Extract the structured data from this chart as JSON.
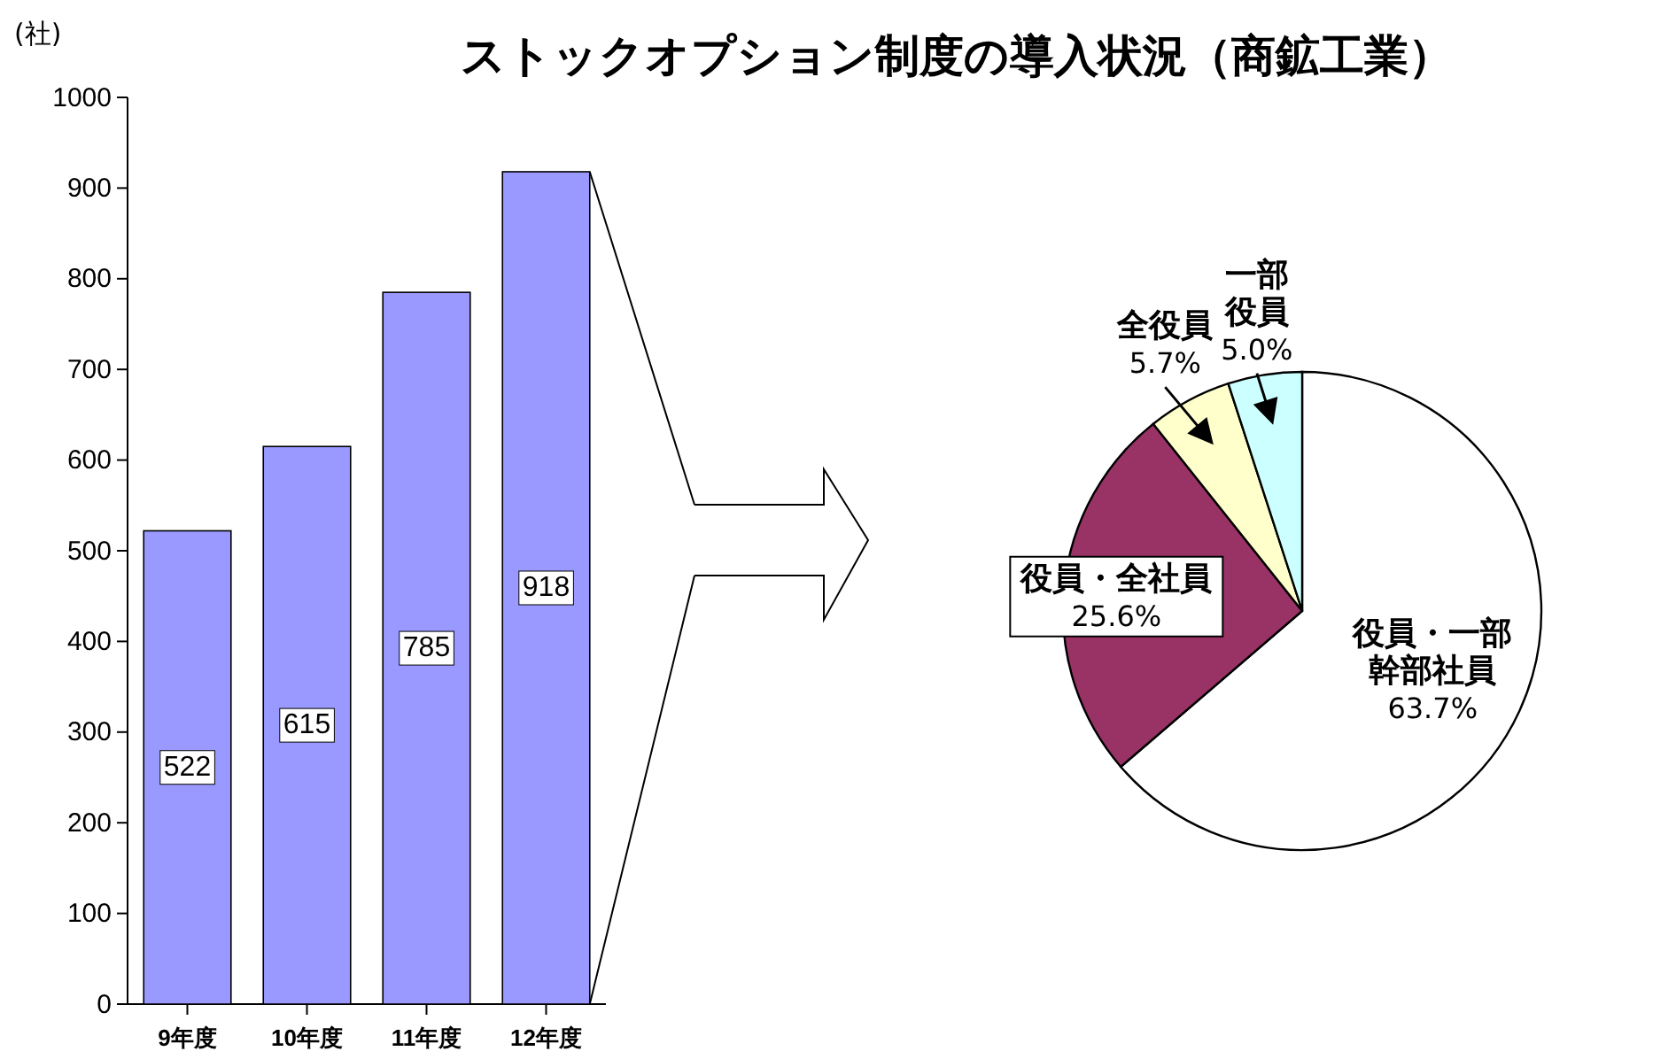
{
  "chart_data": [
    {
      "type": "bar",
      "title": "ストックオプション制度の導入状況（商鉱工業）",
      "ylabel": "(社)",
      "categories": [
        "9年度",
        "10年度",
        "11年度",
        "12年度"
      ],
      "values": [
        522,
        615,
        785,
        918
      ],
      "color": "#9999ff",
      "ylim": [
        0,
        1000
      ],
      "yticks": [
        0,
        100,
        200,
        300,
        400,
        500,
        600,
        700,
        800,
        900,
        1000
      ],
      "data_labels": true
    },
    {
      "type": "pie",
      "categories": [
        "役員・一部幹部社員",
        "役員・全社員",
        "全役員",
        "一部役員"
      ],
      "values": [
        63.7,
        25.6,
        5.7,
        5.0
      ],
      "colors": [
        "#ffffff",
        "#993366",
        "#ffffcc",
        "#ccffff"
      ],
      "value_labels": [
        "63.7%",
        "25.6%",
        "5.7%",
        "5.0%"
      ]
    }
  ]
}
